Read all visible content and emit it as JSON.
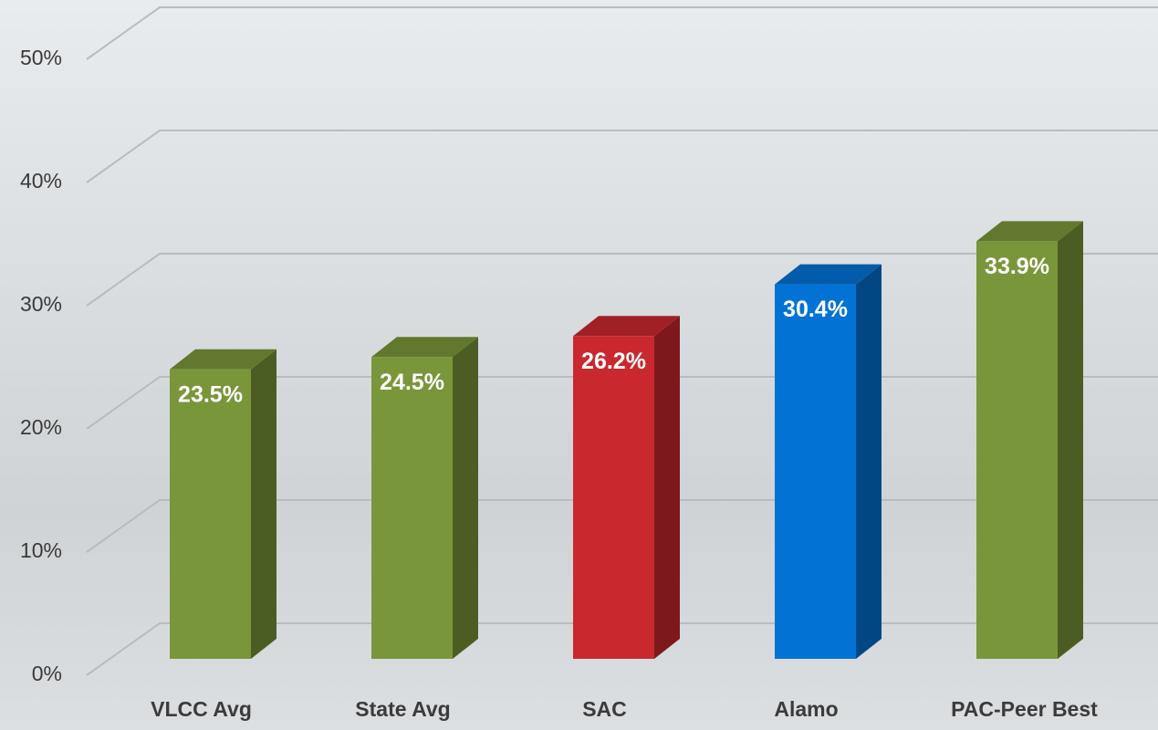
{
  "chart_data": {
    "type": "bar",
    "categories": [
      "VLCC Avg",
      "State Avg",
      "SAC",
      "Alamo",
      "PAC-Peer Best"
    ],
    "values": [
      23.5,
      24.5,
      26.2,
      30.4,
      33.9
    ],
    "value_labels": [
      "23.5%",
      "24.5%",
      "26.2%",
      "30.4%",
      "33.9%"
    ],
    "colors": [
      "#7a963a",
      "#7a963a",
      "#c9282e",
      "#0273d4",
      "#7a963a"
    ],
    "ylim": [
      0,
      50
    ],
    "yticks": [
      {
        "value": 0,
        "label": "0%"
      },
      {
        "value": 10,
        "label": "10%"
      },
      {
        "value": 20,
        "label": "20%"
      },
      {
        "value": 30,
        "label": "30%"
      },
      {
        "value": 40,
        "label": "40%"
      },
      {
        "value": 50,
        "label": "50%"
      }
    ],
    "grid": true
  }
}
